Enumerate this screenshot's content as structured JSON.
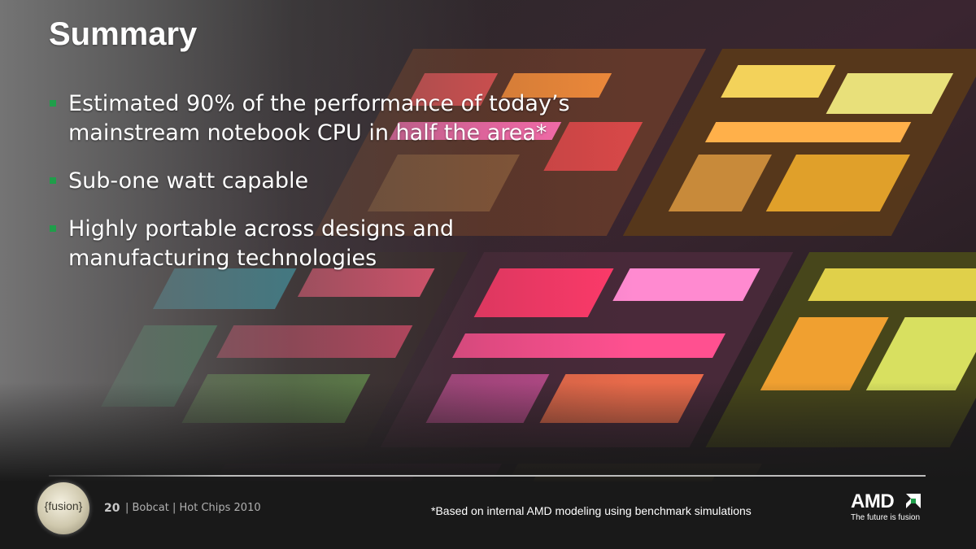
{
  "slide": {
    "title": "Summary",
    "bullets": [
      {
        "line1": "Estimated 90% of the performance of today’s",
        "line2": "mainstream notebook CPU in half the area*"
      },
      {
        "line1": "Sub-one watt capable",
        "line2": ""
      },
      {
        "line1": "Highly portable across designs and",
        "line2": "manufacturing technologies"
      }
    ]
  },
  "footer": {
    "page_number": "20",
    "meta": "| Bobcat | Hot Chips 2010",
    "footnote": "*Based on internal AMD modeling using benchmark simulations",
    "fusion_logo_text": "{fusion}",
    "amd_logo_word": "AMD",
    "amd_tagline": "The future is fusion"
  },
  "colors": {
    "bullet_accent": "#1f9e4a",
    "title_text": "#ffffff",
    "background": "#1f1f1f"
  },
  "icons": {
    "background_image": "cpu-die-photo",
    "fusion_logo": "fusion-logo-icon",
    "amd_logo": "amd-arrow-icon"
  }
}
